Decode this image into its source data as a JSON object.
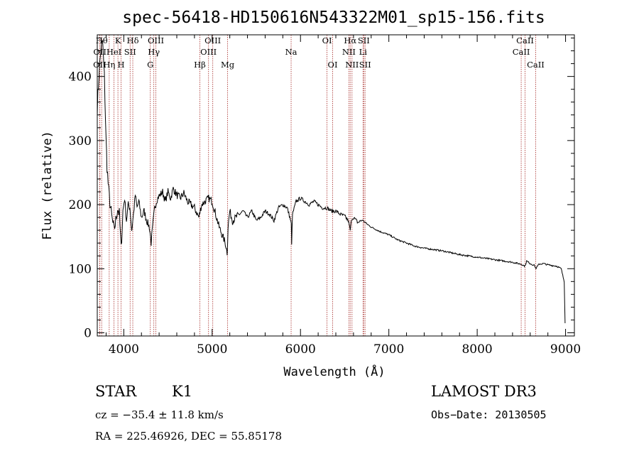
{
  "chart_data": {
    "type": "line",
    "title": "spec-56418-HD150616N543322M01_sp15-156.fits",
    "xlabel": "Wavelength (Å)",
    "ylabel": "Flux (relative)",
    "xlim": [
      3700,
      9100
    ],
    "ylim": [
      -5,
      465
    ],
    "xticks": [
      4000,
      5000,
      6000,
      7000,
      8000,
      9000
    ],
    "xtick_labels": [
      "4000",
      "5000",
      "6000",
      "7000",
      "8000",
      "9000"
    ],
    "yticks": [
      0,
      100,
      200,
      300,
      400
    ],
    "ytick_labels": [
      "0",
      "100",
      "200",
      "300",
      "400"
    ],
    "series": [
      {
        "name": "flux",
        "x": [
          3700,
          3720,
          3740,
          3760,
          3780,
          3800,
          3810,
          3830,
          3850,
          3870,
          3890,
          3910,
          3930,
          3950,
          3970,
          3990,
          4010,
          4030,
          4050,
          4070,
          4090,
          4110,
          4130,
          4150,
          4170,
          4200,
          4230,
          4260,
          4290,
          4310,
          4330,
          4350,
          4380,
          4410,
          4440,
          4470,
          4500,
          4530,
          4560,
          4600,
          4640,
          4680,
          4720,
          4760,
          4800,
          4850,
          4880,
          4920,
          4960,
          5000,
          5040,
          5080,
          5120,
          5150,
          5170,
          5180,
          5200,
          5230,
          5270,
          5310,
          5350,
          5400,
          5450,
          5500,
          5550,
          5600,
          5650,
          5700,
          5750,
          5800,
          5850,
          5880,
          5895,
          5900,
          5910,
          5950,
          6000,
          6050,
          6100,
          6150,
          6200,
          6250,
          6300,
          6350,
          6400,
          6450,
          6500,
          6540,
          6563,
          6580,
          6600,
          6650,
          6700,
          6750,
          6800,
          6900,
          7000,
          7100,
          7200,
          7300,
          7400,
          7500,
          7600,
          7700,
          7800,
          7900,
          8000,
          8100,
          8200,
          8300,
          8400,
          8500,
          8540,
          8560,
          8600,
          8650,
          8662,
          8700,
          8750,
          8800,
          8850,
          8900,
          8950,
          8985,
          8995
        ],
        "values": [
          350,
          405,
          440,
          455,
          400,
          300,
          260,
          220,
          195,
          175,
          160,
          175,
          195,
          185,
          130,
          190,
          210,
          175,
          200,
          195,
          160,
          185,
          215,
          195,
          205,
          180,
          190,
          175,
          165,
          140,
          170,
          195,
          210,
          215,
          220,
          205,
          220,
          210,
          225,
          215,
          210,
          218,
          205,
          200,
          195,
          180,
          200,
          205,
          210,
          205,
          185,
          165,
          150,
          140,
          125,
          165,
          190,
          175,
          180,
          185,
          190,
          180,
          190,
          175,
          180,
          190,
          185,
          175,
          195,
          200,
          195,
          180,
          170,
          140,
          185,
          205,
          210,
          205,
          200,
          205,
          200,
          195,
          195,
          190,
          190,
          185,
          182,
          175,
          160,
          178,
          180,
          172,
          176,
          170,
          165,
          158,
          153,
          145,
          140,
          135,
          132,
          130,
          128,
          125,
          122,
          120,
          118,
          116,
          114,
          112,
          110,
          107,
          104,
          112,
          108,
          105,
          100,
          107,
          108,
          106,
          105,
          104,
          100,
          80,
          15
        ]
      }
    ],
    "lines": [
      {
        "label": "OII",
        "x": 3727,
        "row": 3
      },
      {
        "label": "Hθ",
        "x": 3750,
        "row": 1
      },
      {
        "label": "OII",
        "x": 3729,
        "row": 2
      },
      {
        "label": "Hη",
        "x": 3835,
        "row": 3
      },
      {
        "label": "HeI",
        "x": 3889,
        "row": 2
      },
      {
        "label": "K",
        "x": 3934,
        "row": 1
      },
      {
        "label": "H",
        "x": 3969,
        "row": 3
      },
      {
        "label": "SII",
        "x": 4072,
        "row": 2
      },
      {
        "label": "Hδ",
        "x": 4102,
        "row": 1
      },
      {
        "label": "G",
        "x": 4300,
        "row": 3
      },
      {
        "label": "OIII",
        "x": 4363,
        "row": 1
      },
      {
        "label": "Hγ",
        "x": 4340,
        "row": 2
      },
      {
        "label": "Hβ",
        "x": 4861,
        "row": 3
      },
      {
        "label": "OIII",
        "x": 4959,
        "row": 2
      },
      {
        "label": "OIII",
        "x": 5007,
        "row": 1
      },
      {
        "label": "Mg",
        "x": 5175,
        "row": 3
      },
      {
        "label": "Na",
        "x": 5894,
        "row": 2
      },
      {
        "label": "OI",
        "x": 6300,
        "row": 1
      },
      {
        "label": "OI",
        "x": 6364,
        "row": 3
      },
      {
        "label": "NII",
        "x": 6548,
        "row": 2
      },
      {
        "label": "Hα",
        "x": 6563,
        "row": 1
      },
      {
        "label": "NII",
        "x": 6583,
        "row": 3
      },
      {
        "label": "SII",
        "x": 6716,
        "row": 1
      },
      {
        "label": "Li",
        "x": 6708,
        "row": 2
      },
      {
        "label": "SII",
        "x": 6731,
        "row": 3
      },
      {
        "label": "CaII",
        "x": 8498,
        "row": 2
      },
      {
        "label": "CaII",
        "x": 8542,
        "row": 1
      },
      {
        "label": "CaII",
        "x": 8662,
        "row": 3
      }
    ]
  },
  "info": {
    "object_class": "STAR",
    "subclass": "K1",
    "survey": "LAMOST DR3",
    "cz": "cz = −35.4 ± 11.8 km/s",
    "obs_date": "Obs−Date: 20130505",
    "coords": "RA = 225.46926, DEC =  55.85178"
  },
  "colors": {
    "line_marker": "#b0413e",
    "spectrum": "#000000",
    "axes": "#000000"
  }
}
